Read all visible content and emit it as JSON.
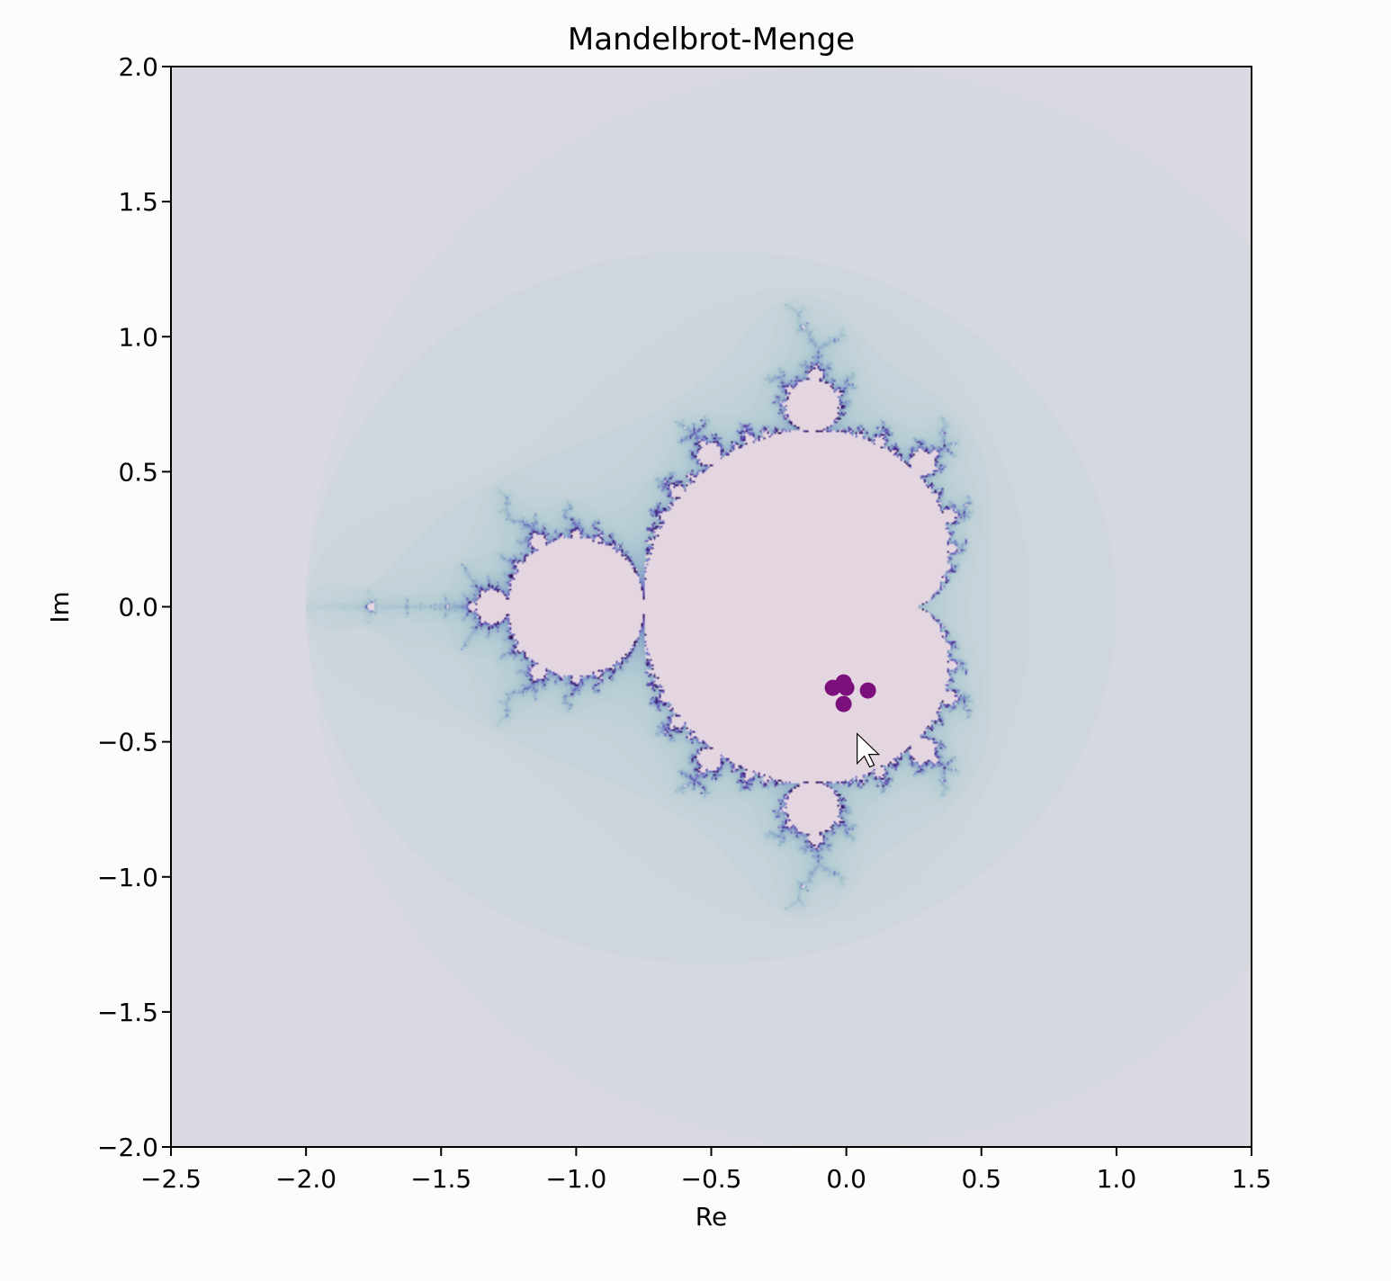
{
  "chart_data": {
    "type": "heatmap",
    "title": "Mandelbrot-Menge",
    "xlabel": "Re",
    "ylabel": "Im",
    "xlim": [
      -2.5,
      1.5
    ],
    "ylim": [
      -2.0,
      2.0
    ],
    "xticks": [
      -2.5,
      -2.0,
      -1.5,
      -1.0,
      -0.5,
      0.0,
      0.5,
      1.0,
      1.5
    ],
    "xtick_labels": [
      "−2.5",
      "−2.0",
      "−1.5",
      "−1.0",
      "−0.5",
      "0.0",
      "0.5",
      "1.0",
      "1.5"
    ],
    "yticks": [
      2.0,
      1.5,
      1.0,
      0.5,
      0.0,
      -0.5,
      -1.0,
      -1.5,
      -2.0
    ],
    "ytick_labels": [
      "2.0",
      "1.5",
      "1.0",
      "0.5",
      "0.0",
      "−0.5",
      "−1.0",
      "−1.5",
      "−2.0"
    ],
    "colormap": [
      "#e7d9e3",
      "#d5d8df",
      "#b5cdd3",
      "#8aa9c8",
      "#6a5fbf",
      "#3a1a7a",
      "#2a0a40"
    ],
    "inset_color": "#e4d6e0",
    "grid": false,
    "points": {
      "color": "#7b0f7b",
      "x": [
        -0.05,
        -0.01,
        0.0,
        0.08,
        -0.01
      ],
      "y": [
        -0.3,
        -0.28,
        -0.3,
        -0.31,
        -0.36
      ]
    },
    "cursor_icon": "mouse-pointer-icon",
    "cursor_position": [
      0.04,
      -0.47
    ]
  }
}
